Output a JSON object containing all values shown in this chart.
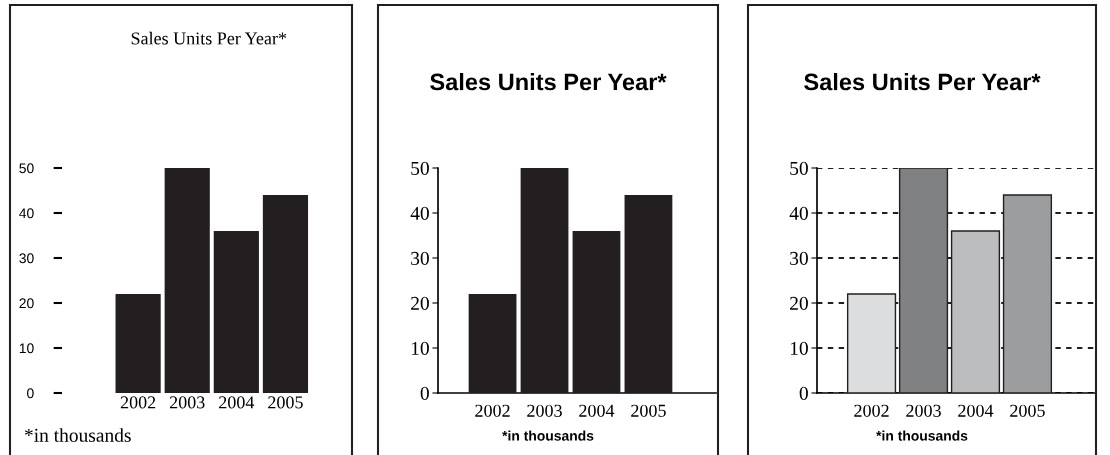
{
  "chart_data": [
    {
      "type": "bar",
      "title": "Sales Units Per Year*",
      "categories": [
        "2002",
        "2003",
        "2004",
        "2005"
      ],
      "values": [
        22,
        50,
        36,
        44
      ],
      "color": "#231f20",
      "ylim": [
        0,
        50
      ],
      "yticks": [
        0,
        10,
        20,
        30,
        40,
        50
      ],
      "annotations": [
        "*in thousands"
      ]
    },
    {
      "type": "bar",
      "title": "Sales Units Per Year*",
      "categories": [
        "2002",
        "2003",
        "2004",
        "2005"
      ],
      "values": [
        22,
        50,
        36,
        44
      ],
      "color": "#231f20",
      "ylim": [
        0,
        50
      ],
      "yticks": [
        0,
        10,
        20,
        30,
        40,
        50
      ],
      "annotations": [
        "*in thousands"
      ]
    },
    {
      "type": "bar",
      "title": "Sales Units Per Year*",
      "categories": [
        "2002",
        "2003",
        "2004",
        "2005"
      ],
      "values": [
        22,
        50,
        36,
        44
      ],
      "colors": [
        "#dcdddf",
        "#808183",
        "#bcbdbf",
        "#9c9d9f"
      ],
      "ylim": [
        0,
        50
      ],
      "yticks": [
        0,
        10,
        20,
        30,
        40,
        50
      ],
      "grid": "y",
      "annotations": [
        "*in thousands"
      ]
    }
  ]
}
